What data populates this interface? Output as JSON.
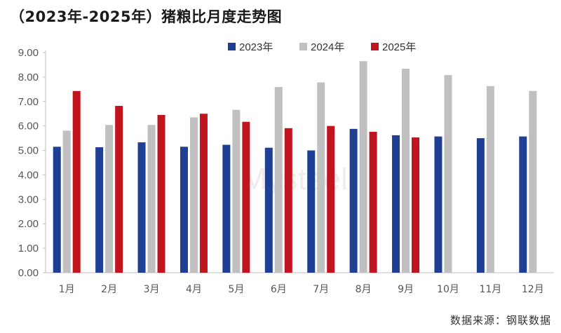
{
  "title": "（2023年-2025年）猪粮比月度走势图",
  "source": "数据来源：钢联数据",
  "watermark": "Mysteel",
  "chart_data": {
    "type": "bar",
    "categories": [
      "1月",
      "2月",
      "3月",
      "4月",
      "5月",
      "6月",
      "7月",
      "8月",
      "9月",
      "10月",
      "11月",
      "12月"
    ],
    "series": [
      {
        "name": "2023年",
        "color": "#1f3f93",
        "values": [
          5.15,
          5.13,
          5.33,
          5.15,
          5.23,
          5.11,
          5.0,
          5.88,
          5.62,
          5.57,
          5.5,
          5.57
        ]
      },
      {
        "name": "2024年",
        "color": "#c0c0c0",
        "values": [
          5.81,
          6.04,
          6.04,
          6.35,
          6.66,
          7.59,
          7.78,
          8.65,
          8.34,
          8.08,
          7.63,
          7.43
        ]
      },
      {
        "name": "2025年",
        "color": "#c0141e",
        "values": [
          7.43,
          6.82,
          6.45,
          6.5,
          6.17,
          5.91,
          6.0,
          5.76,
          5.53,
          null,
          null,
          null
        ]
      }
    ],
    "ylim": [
      0,
      9
    ],
    "yticks": [
      "0.00",
      "1.00",
      "2.00",
      "3.00",
      "4.00",
      "5.00",
      "6.00",
      "7.00",
      "8.00",
      "9.00"
    ],
    "xlabel": "",
    "ylabel": "",
    "legend_position": "top-right",
    "grid": false
  }
}
